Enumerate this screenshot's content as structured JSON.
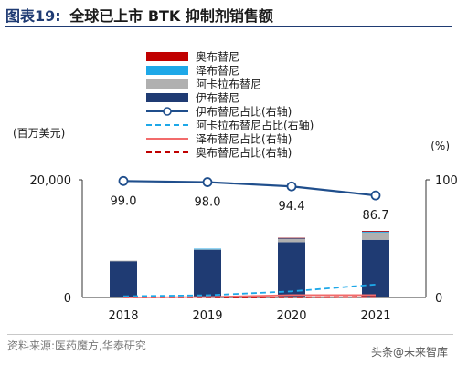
{
  "figure": {
    "label": "图表19:",
    "title": "全球已上市 BTK 抑制剂销售额",
    "source": "资料来源:医药魔方,华泰研究",
    "watermark": "头条@未来智库"
  },
  "colors": {
    "zanubrutinib": "#c00000",
    "acalabrutinib_bar": "#b0b0b0",
    "ibrutinib": "#1f3b73",
    "zebrutinib_bar": "#1ea8e8",
    "ibrutinib_line": "#1f4e8c",
    "acalabrutinib_line": "#1ea8e8",
    "zebrutinib_line": "#f26b6b",
    "zanubrutinib_line": "#c00000"
  },
  "chart_data": {
    "type": "bar",
    "categories": [
      "2018",
      "2019",
      "2020",
      "2021"
    ],
    "y_left": {
      "label": "(百万美元)",
      "ticks": [
        "0",
        "20,000"
      ],
      "lim": [
        0,
        20000
      ]
    },
    "y_right": {
      "label": "(%)",
      "ticks": [
        "0",
        "100"
      ],
      "lim": [
        0,
        100
      ]
    },
    "series": [
      {
        "name": "奥布替尼",
        "kind": "bar",
        "values": [
          0,
          0,
          10,
          50
        ]
      },
      {
        "name": "泽布替尼",
        "kind": "bar",
        "values": [
          0,
          30,
          200,
          220
        ]
      },
      {
        "name": "阿卡拉布替尼",
        "kind": "bar",
        "values": [
          60,
          160,
          520,
          1240
        ]
      },
      {
        "name": "伊布替尼",
        "kind": "bar",
        "values": [
          6200,
          8100,
          9400,
          9800
        ]
      },
      {
        "name": "伊布替尼占比(右轴)",
        "kind": "line",
        "values": [
          99.0,
          98.0,
          94.4,
          86.7
        ],
        "labels": [
          "99.0",
          "98.0",
          "94.4",
          "86.7"
        ]
      },
      {
        "name": "阿卡拉布替尼占比(右轴)",
        "kind": "line",
        "dash": true,
        "values": [
          1.0,
          1.9,
          5.2,
          11.0
        ]
      },
      {
        "name": "泽布替尼占比(右轴)",
        "kind": "line",
        "values": [
          0,
          0.4,
          2.0,
          2.0
        ]
      },
      {
        "name": "奥布替尼占比(右轴)",
        "kind": "line",
        "dash": true,
        "values": [
          0,
          0,
          0.1,
          0.4
        ]
      }
    ],
    "legend_position": "top-left"
  }
}
